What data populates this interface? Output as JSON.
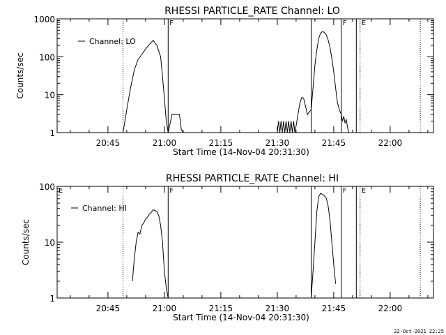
{
  "footer": {
    "date": "22-Oct-2021 22:25"
  },
  "chart_data": [
    {
      "type": "line",
      "title": "RHESSI PARTICLE_RATE Channel: LO",
      "xlabel": "Start Time (14-Nov-04 20:31:30)",
      "ylabel": "Counts/sec",
      "yscale": "log",
      "ylim": [
        1,
        1000
      ],
      "yticks": [
        1,
        10,
        100,
        1000
      ],
      "ytick_labels": [
        "1",
        "10",
        "100",
        "1000"
      ],
      "xlim": [
        "20:31:30",
        "22:11:30"
      ],
      "xticks": [
        "20:45",
        "21:00",
        "21:15",
        "21:30",
        "21:45",
        "22:00"
      ],
      "legend": {
        "position": "top-left",
        "entries": [
          "Channel: LO"
        ]
      },
      "markers": [
        {
          "time": "20:49:00",
          "style": "dotted",
          "label": ""
        },
        {
          "time": "21:01:00",
          "style": "solid",
          "label": "F"
        },
        {
          "time": "21:39:00",
          "style": "solid",
          "label": ""
        },
        {
          "time": "21:47:00",
          "style": "solid",
          "label": "F"
        },
        {
          "time": "21:51:00",
          "style": "solid",
          "label": ""
        },
        {
          "time": "21:52:00",
          "style": "dotted",
          "label": "E"
        },
        {
          "time": "22:08:00",
          "style": "dotted",
          "label": ""
        }
      ],
      "series": [
        {
          "name": "Channel: LO",
          "segments": [
            {
              "x": [
                "20:49:00",
                "20:50:00",
                "20:51:00",
                "20:52:00",
                "20:53:00",
                "20:54:00",
                "20:55:00",
                "20:56:00",
                "20:57:00",
                "20:58:00",
                "20:59:00",
                "20:59:30",
                "21:00:00",
                "21:00:30",
                "21:01:00"
              ],
              "y": [
                1,
                4,
                15,
                45,
                85,
                115,
                160,
                210,
                270,
                200,
                100,
                30,
                8,
                2,
                1
              ]
            },
            {
              "x": [
                "21:01:00",
                "21:01:30",
                "21:02:00",
                "21:04:00",
                "21:04:30",
                "21:05:00"
              ],
              "y": [
                1,
                1.7,
                3,
                3,
                1.2,
                1
              ]
            },
            {
              "x": [
                "21:30:00",
                "21:30:20",
                "21:30:40",
                "21:31:00",
                "21:31:20",
                "21:31:40",
                "21:32:00",
                "21:32:20",
                "21:32:40",
                "21:33:00",
                "21:33:20",
                "21:33:40",
                "21:34:00",
                "21:34:20",
                "21:34:40",
                "21:35:00"
              ],
              "y": [
                1,
                2,
                1,
                2,
                1,
                2,
                1,
                2,
                1,
                2,
                1,
                2,
                1,
                2,
                1,
                1.5
              ]
            },
            {
              "x": [
                "21:35:00",
                "21:35:30",
                "21:36:00",
                "21:36:30",
                "21:37:00",
                "21:37:30",
                "21:38:00",
                "21:38:30",
                "21:39:00"
              ],
              "y": [
                1.5,
                3,
                6,
                8.5,
                8,
                5,
                3,
                3.5,
                4
              ]
            },
            {
              "x": [
                "21:39:00",
                "21:39:30",
                "21:40:00",
                "21:40:30",
                "21:41:00",
                "21:41:30",
                "21:42:00",
                "21:42:30",
                "21:43:00",
                "21:43:30",
                "21:44:00",
                "21:44:30",
                "21:45:00",
                "21:45:30",
                "21:46:00",
                "21:46:30",
                "21:47:00"
              ],
              "y": [
                4,
                15,
                60,
                150,
                300,
                420,
                460,
                440,
                380,
                280,
                180,
                90,
                40,
                15,
                6,
                4,
                3
              ]
            },
            {
              "x": [
                "21:47:00",
                "21:47:20",
                "21:47:40",
                "21:48:00",
                "21:48:20",
                "21:48:40",
                "21:49:00"
              ],
              "y": [
                3,
                2,
                2.7,
                1.8,
                2.2,
                1.4,
                1
              ]
            }
          ]
        }
      ]
    },
    {
      "type": "line",
      "title": "RHESSI PARTICLE_RATE Channel: HI",
      "xlabel": "Start Time (14-Nov-04 20:31:30)",
      "ylabel": "Counts/sec",
      "yscale": "log",
      "ylim": [
        1,
        100
      ],
      "yticks": [
        1,
        10,
        100
      ],
      "ytick_labels": [
        "1",
        "10",
        "100"
      ],
      "xlim": [
        "20:31:30",
        "22:11:30"
      ],
      "xticks": [
        "20:45",
        "21:00",
        "21:15",
        "21:30",
        "21:45",
        "22:00"
      ],
      "legend": {
        "position": "top-left",
        "entries": [
          "Channel: HI"
        ]
      },
      "markers": [
        {
          "time": "20:31:30",
          "style": "none",
          "label": "E"
        },
        {
          "time": "20:49:00",
          "style": "dotted",
          "label": ""
        },
        {
          "time": "21:01:00",
          "style": "solid",
          "label": "F"
        },
        {
          "time": "21:39:00",
          "style": "solid",
          "label": ""
        },
        {
          "time": "21:47:00",
          "style": "solid",
          "label": "F"
        },
        {
          "time": "21:51:00",
          "style": "solid",
          "label": ""
        },
        {
          "time": "21:52:00",
          "style": "dotted",
          "label": "E"
        },
        {
          "time": "22:08:00",
          "style": "dotted",
          "label": ""
        }
      ],
      "series": [
        {
          "name": "Channel: HI",
          "segments": [
            {
              "x": [
                "20:51:30",
                "20:52:00",
                "20:52:30",
                "20:53:00",
                "20:53:30",
                "20:54:00",
                "20:54:30",
                "20:55:00",
                "20:55:30",
                "20:56:00",
                "20:56:30",
                "20:57:00",
                "20:57:30",
                "20:58:00",
                "20:58:30",
                "20:59:00",
                "20:59:30",
                "21:00:00",
                "21:00:30",
                "21:01:00"
              ],
              "y": [
                2,
                5,
                10,
                15,
                14,
                20,
                22,
                26,
                28,
                32,
                34,
                38,
                37,
                35,
                30,
                20,
                10,
                3,
                1.5,
                1
              ]
            },
            {
              "x": [
                "21:39:00",
                "21:39:30",
                "21:40:00",
                "21:40:30",
                "21:41:00",
                "21:41:30",
                "21:42:00",
                "21:42:30",
                "21:43:00",
                "21:43:30",
                "21:44:00",
                "21:44:30",
                "21:45:00",
                "21:45:30"
              ],
              "y": [
                1,
                3,
                10,
                35,
                65,
                75,
                72,
                68,
                62,
                45,
                25,
                10,
                4,
                1.8
              ]
            }
          ]
        }
      ]
    }
  ]
}
